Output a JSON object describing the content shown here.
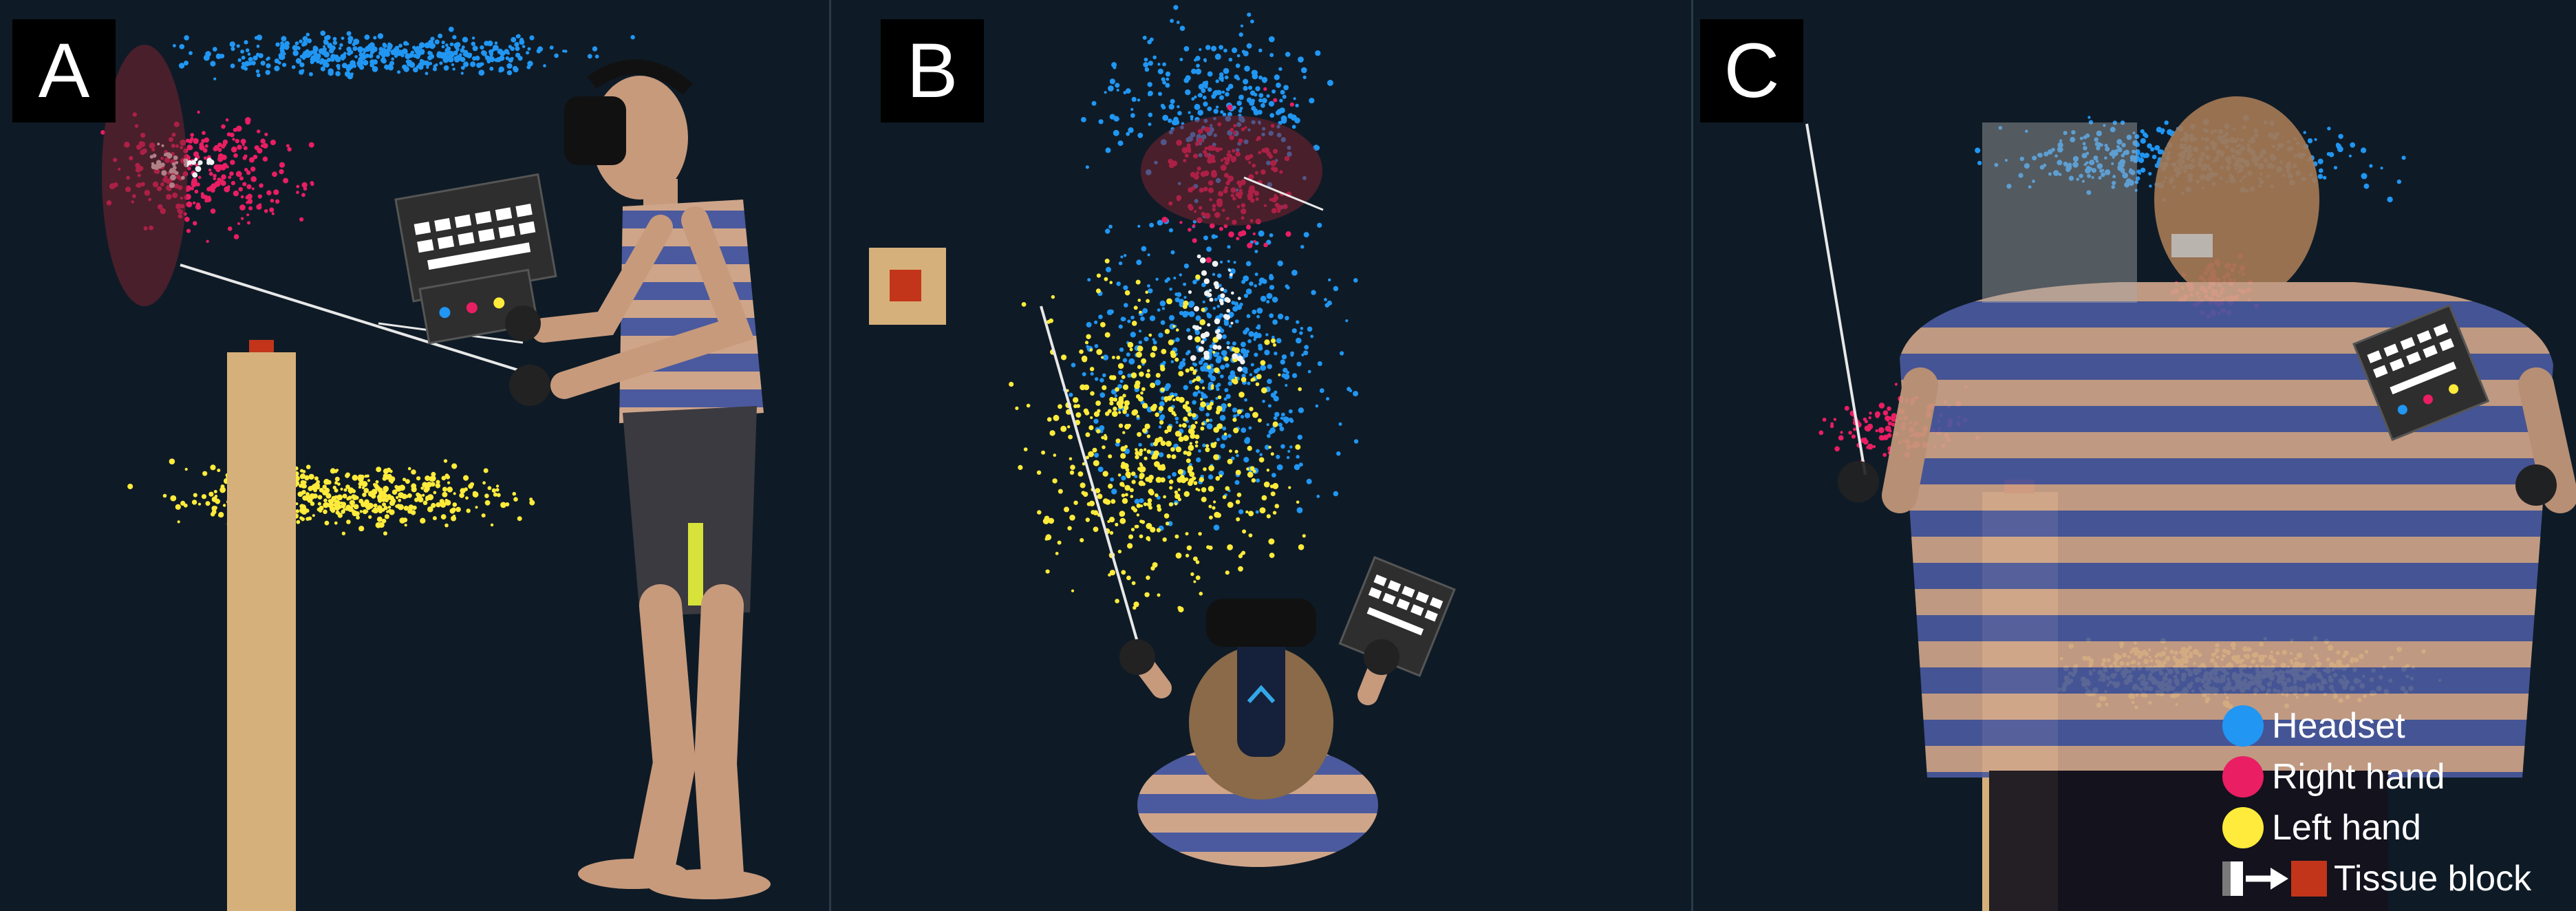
{
  "panels": [
    {
      "label": "A",
      "view": "side"
    },
    {
      "label": "B",
      "view": "top"
    },
    {
      "label": "C",
      "view": "back"
    }
  ],
  "legend": [
    {
      "label": "Headset",
      "color": "#2196f3"
    },
    {
      "label": "Right hand",
      "color": "#e91e63"
    },
    {
      "label": "Left hand",
      "color": "#ffeb3b"
    },
    {
      "label": "Tissue block",
      "color": "#c2351b"
    }
  ],
  "colors": {
    "background": "#0e1b26",
    "tissue_column": "#d6b07a",
    "tissue_top": "#c2351b",
    "shirt_stripe_light": "#cfa58a",
    "shirt_stripe_dark": "#4b5a9e"
  }
}
